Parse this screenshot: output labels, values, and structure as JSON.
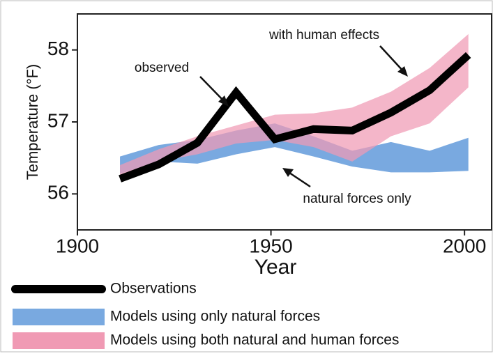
{
  "chart_data": {
    "type": "line",
    "x_label": "Year",
    "y_label": "Temperature (°F)",
    "x": [
      1911,
      1921,
      1931,
      1941,
      1951,
      1961,
      1971,
      1981,
      1991,
      2001
    ],
    "series": [
      {
        "name": "Observations",
        "color": "#000000",
        "kind": "line",
        "values": [
          56.21,
          56.41,
          56.71,
          57.41,
          56.76,
          56.9,
          56.88,
          57.13,
          57.44,
          57.93
        ]
      },
      {
        "name": "Models using only natural forces",
        "color": "#79a9e0",
        "kind": "band",
        "lower": [
          56.28,
          56.45,
          56.42,
          56.55,
          56.65,
          56.52,
          56.38,
          56.3,
          56.3,
          56.32
        ],
        "upper": [
          56.52,
          56.68,
          56.75,
          56.88,
          56.98,
          56.8,
          56.6,
          56.72,
          56.6,
          56.78
        ]
      },
      {
        "name": "Models using both natural and human forces",
        "color": "#f09ab4",
        "kind": "band",
        "lower": [
          56.2,
          56.45,
          56.55,
          56.7,
          56.75,
          56.65,
          56.45,
          56.8,
          56.98,
          57.48
        ],
        "upper": [
          56.4,
          56.62,
          56.8,
          56.95,
          57.1,
          57.12,
          57.2,
          57.42,
          57.75,
          58.22
        ]
      }
    ],
    "annotations": [
      "with human effects",
      "observed",
      "natural forces only"
    ],
    "xlim": [
      1900,
      2007
    ],
    "ylim": [
      55.5,
      58.5
    ],
    "xticks": [
      1900,
      1950,
      2000
    ],
    "yticks": [
      56,
      57,
      58
    ]
  }
}
